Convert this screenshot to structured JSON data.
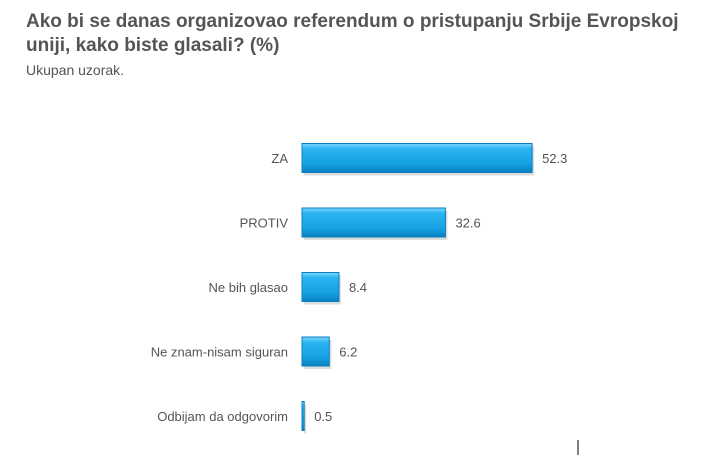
{
  "title": "Ako bi se danas organizovao referendum o pristupanju Srbije Evropskoj uniji, kako biste glasali? (%)",
  "subtitle": "Ukupan uzorak.",
  "chart_data": {
    "type": "bar",
    "orientation": "horizontal",
    "categories": [
      "ZA",
      "PROTIV",
      "Ne bih glasao",
      "Ne znam-nisam siguran",
      "Odbijam da odgovorim"
    ],
    "values": [
      52.3,
      32.6,
      8.4,
      6.2,
      0.5
    ],
    "value_labels": [
      "52.3",
      "32.6",
      "8.4",
      "6.2",
      "0.5"
    ],
    "xlim": [
      0,
      60
    ],
    "grid": false,
    "legend": "none",
    "bar_color": "#1aa7e8",
    "bar_color_dark": "#0a7fbf"
  }
}
